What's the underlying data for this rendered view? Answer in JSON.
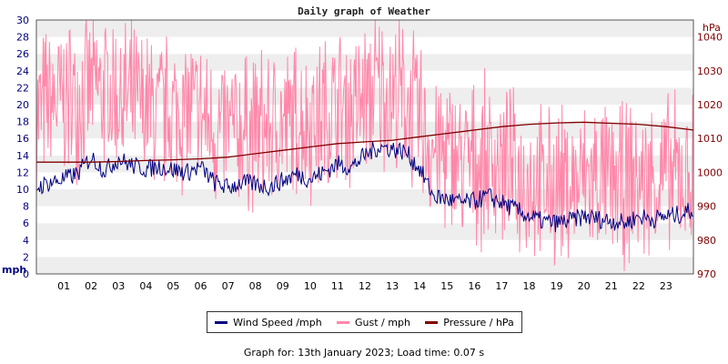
{
  "chart_data": {
    "type": "line",
    "title": "Daily graph of Weather",
    "x": {
      "ticks": [
        "01",
        "02",
        "03",
        "04",
        "05",
        "06",
        "07",
        "08",
        "09",
        "10",
        "11",
        "12",
        "13",
        "14",
        "15",
        "16",
        "17",
        "18",
        "19",
        "20",
        "21",
        "22",
        "23"
      ],
      "range": [
        0,
        24
      ],
      "unit": "hour"
    },
    "y_left": {
      "label": "mph",
      "range": [
        0,
        30
      ],
      "ticks": [
        0,
        2,
        4,
        6,
        8,
        10,
        12,
        14,
        16,
        18,
        20,
        22,
        24,
        26,
        28,
        30
      ],
      "color": "#000080"
    },
    "y_right": {
      "label": "hPa",
      "range": [
        970,
        1045
      ],
      "ticks": [
        970,
        980,
        990,
        1000,
        1010,
        1020,
        1030,
        1040
      ],
      "color": "#800000"
    },
    "grid": "horizontal alternating bands",
    "legend_position": "bottom-center",
    "series": [
      {
        "name": "Wind Speed /mph",
        "axis": "left",
        "color": "#000080",
        "points": [
          [
            0,
            10.2
          ],
          [
            0.5,
            10.8
          ],
          [
            1,
            11.2
          ],
          [
            1.5,
            11.8
          ],
          [
            2,
            13.8
          ],
          [
            2.5,
            12.2
          ],
          [
            3,
            13.6
          ],
          [
            3.5,
            12.8
          ],
          [
            4,
            12.4
          ],
          [
            4.5,
            12.7
          ],
          [
            5,
            12.3
          ],
          [
            5.5,
            12.0
          ],
          [
            6,
            12.6
          ],
          [
            6.5,
            10.8
          ],
          [
            7,
            10.2
          ],
          [
            7.5,
            10.8
          ],
          [
            8,
            10.6
          ],
          [
            8.5,
            10.3
          ],
          [
            9,
            11.0
          ],
          [
            9.5,
            11.8
          ],
          [
            10,
            11.2
          ],
          [
            10.5,
            12.0
          ],
          [
            11,
            13.0
          ],
          [
            11.5,
            12.6
          ],
          [
            12,
            14.0
          ],
          [
            12.5,
            15.0
          ],
          [
            13,
            14.8
          ],
          [
            13.5,
            14.4
          ],
          [
            14,
            12.4
          ],
          [
            14.5,
            9.2
          ],
          [
            15,
            8.8
          ],
          [
            15.5,
            8.4
          ],
          [
            16,
            8.6
          ],
          [
            16.5,
            9.2
          ],
          [
            17,
            8.4
          ],
          [
            17.5,
            7.6
          ],
          [
            18,
            6.8
          ],
          [
            18.5,
            6.2
          ],
          [
            19,
            6.0
          ],
          [
            19.5,
            6.3
          ],
          [
            20,
            6.8
          ],
          [
            20.5,
            6.5
          ],
          [
            21,
            6.3
          ],
          [
            21.5,
            6.0
          ],
          [
            22,
            6.8
          ],
          [
            22.5,
            6.5
          ],
          [
            23,
            6.8
          ],
          [
            23.5,
            7.0
          ],
          [
            24,
            7.6
          ]
        ]
      },
      {
        "name": "Gust / mph",
        "axis": "left",
        "color": "#ff88aa",
        "points": [
          [
            0,
            19
          ],
          [
            0.5,
            20
          ],
          [
            1,
            20.5
          ],
          [
            1.5,
            21
          ],
          [
            2,
            22
          ],
          [
            2.5,
            21.5
          ],
          [
            3,
            21
          ],
          [
            3.5,
            20
          ],
          [
            4,
            19.5
          ],
          [
            4.5,
            19
          ],
          [
            5,
            19
          ],
          [
            5.5,
            19.5
          ],
          [
            6,
            18.5
          ],
          [
            6.5,
            17
          ],
          [
            7,
            16.5
          ],
          [
            7.5,
            17
          ],
          [
            8,
            17
          ],
          [
            8.5,
            17
          ],
          [
            9,
            17.5
          ],
          [
            9.5,
            18
          ],
          [
            10,
            18
          ],
          [
            10.5,
            19
          ],
          [
            11,
            19.5
          ],
          [
            11.5,
            19.5
          ],
          [
            12,
            20.5
          ],
          [
            12.5,
            22
          ],
          [
            13,
            21
          ],
          [
            13.5,
            20.5
          ],
          [
            14,
            18
          ],
          [
            14.5,
            15
          ],
          [
            15,
            14
          ],
          [
            15.5,
            13.5
          ],
          [
            16,
            13
          ],
          [
            16.5,
            13.5
          ],
          [
            17,
            13
          ],
          [
            17.5,
            11.5
          ],
          [
            18,
            11
          ],
          [
            18.5,
            10
          ],
          [
            19,
            10.5
          ],
          [
            19.5,
            10
          ],
          [
            20,
            11
          ],
          [
            20.5,
            11
          ],
          [
            21,
            10.5
          ],
          [
            21.5,
            10.5
          ],
          [
            22,
            11
          ],
          [
            22.5,
            11
          ],
          [
            23,
            11.5
          ],
          [
            23.5,
            11.5
          ],
          [
            24,
            12
          ]
        ]
      },
      {
        "name": "Pressure / hPa",
        "axis": "right",
        "color": "#800000",
        "points": [
          [
            0,
            1003
          ],
          [
            1,
            1003
          ],
          [
            2,
            1003
          ],
          [
            3,
            1003.2
          ],
          [
            4,
            1003.5
          ],
          [
            5,
            1003.7
          ],
          [
            6,
            1004
          ],
          [
            7,
            1004.5
          ],
          [
            8,
            1005.5
          ],
          [
            9,
            1006.5
          ],
          [
            10,
            1007.5
          ],
          [
            11,
            1008.5
          ],
          [
            12,
            1009
          ],
          [
            13,
            1009.5
          ],
          [
            14,
            1010.5
          ],
          [
            15,
            1011.5
          ],
          [
            16,
            1012.5
          ],
          [
            17,
            1013.5
          ],
          [
            18,
            1014.2
          ],
          [
            19,
            1014.6
          ],
          [
            20,
            1014.8
          ],
          [
            21,
            1014.5
          ],
          [
            22,
            1014.2
          ],
          [
            23,
            1013.5
          ],
          [
            24,
            1012.5
          ]
        ]
      }
    ]
  },
  "legend": {
    "wind": "Wind Speed /mph",
    "gust": "Gust / mph",
    "pressure": "Pressure / hPa"
  },
  "footer": "Graph for: 13th January 2023; Load time: 0.07 s"
}
